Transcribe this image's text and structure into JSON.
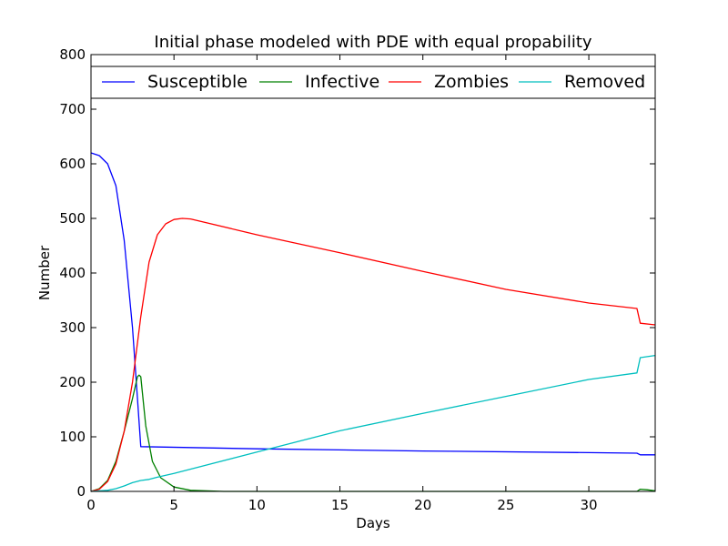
{
  "chart_data": {
    "type": "line",
    "title": "Initial phase modeled with PDE with equal propability",
    "xlabel": "Days",
    "ylabel": "Number",
    "xlim": [
      0,
      34
    ],
    "ylim": [
      0,
      800
    ],
    "xticks": [
      0,
      5,
      10,
      15,
      20,
      25,
      30
    ],
    "yticks": [
      0,
      100,
      200,
      300,
      400,
      500,
      600,
      700,
      800
    ],
    "grid": false,
    "legend_position": "top",
    "series": [
      {
        "name": "Susceptible",
        "color": "#0000ff",
        "points": [
          [
            0,
            620
          ],
          [
            0.5,
            615
          ],
          [
            1,
            600
          ],
          [
            1.5,
            560
          ],
          [
            2,
            460
          ],
          [
            2.5,
            300
          ],
          [
            2.8,
            170
          ],
          [
            3,
            82
          ],
          [
            10,
            78
          ],
          [
            20,
            74
          ],
          [
            30,
            71
          ],
          [
            32.9,
            70
          ],
          [
            33.1,
            67
          ],
          [
            34,
            67
          ]
        ]
      },
      {
        "name": "Infective",
        "color": "#008000",
        "points": [
          [
            0,
            0
          ],
          [
            0.5,
            5
          ],
          [
            1,
            20
          ],
          [
            1.5,
            55
          ],
          [
            2,
            110
          ],
          [
            2.5,
            170
          ],
          [
            2.8,
            210
          ],
          [
            2.9,
            213
          ],
          [
            3,
            210
          ],
          [
            3.3,
            120
          ],
          [
            3.7,
            55
          ],
          [
            4.2,
            25
          ],
          [
            5,
            8
          ],
          [
            6,
            2
          ],
          [
            8,
            0
          ],
          [
            32.9,
            0
          ],
          [
            33.1,
            4
          ],
          [
            33.5,
            3
          ],
          [
            34,
            1
          ]
        ]
      },
      {
        "name": "Zombies",
        "color": "#ff0000",
        "points": [
          [
            0,
            0
          ],
          [
            0.5,
            4
          ],
          [
            1,
            18
          ],
          [
            1.5,
            50
          ],
          [
            2,
            110
          ],
          [
            2.5,
            200
          ],
          [
            3,
            320
          ],
          [
            3.5,
            420
          ],
          [
            4,
            470
          ],
          [
            4.5,
            490
          ],
          [
            5,
            498
          ],
          [
            5.5,
            500
          ],
          [
            6,
            499
          ],
          [
            10,
            470
          ],
          [
            15,
            437
          ],
          [
            20,
            403
          ],
          [
            25,
            370
          ],
          [
            30,
            345
          ],
          [
            32.9,
            335
          ],
          [
            33.1,
            308
          ],
          [
            34,
            305
          ]
        ]
      },
      {
        "name": "Removed",
        "color": "#00bfbf",
        "points": [
          [
            0,
            0
          ],
          [
            1,
            2
          ],
          [
            1.5,
            5
          ],
          [
            2,
            10
          ],
          [
            2.5,
            16
          ],
          [
            3,
            20
          ],
          [
            3.5,
            22
          ],
          [
            4,
            26
          ],
          [
            5,
            33
          ],
          [
            10,
            72
          ],
          [
            15,
            111
          ],
          [
            20,
            143
          ],
          [
            25,
            174
          ],
          [
            30,
            205
          ],
          [
            32.9,
            217
          ],
          [
            33.1,
            245
          ],
          [
            34,
            249
          ]
        ]
      }
    ]
  }
}
